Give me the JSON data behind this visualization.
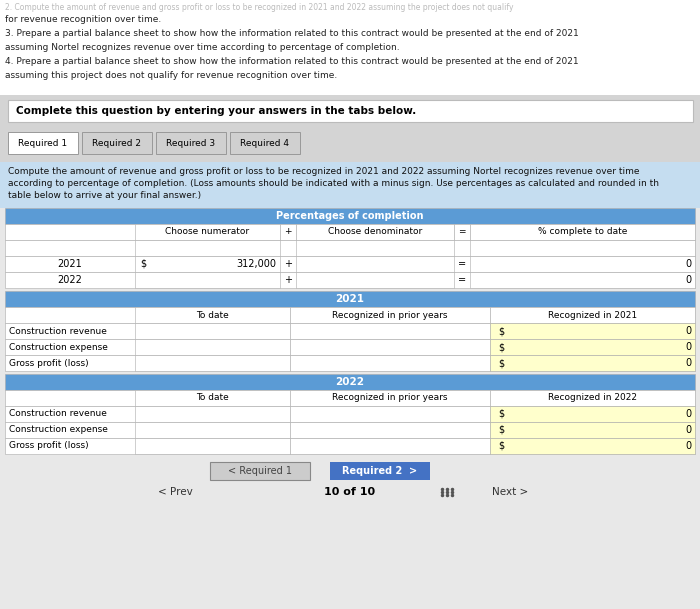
{
  "bg_color": "#e8e8e8",
  "white": "#ffffff",
  "light_blue": "#5b9bd5",
  "medium_blue": "#4472c4",
  "light_gray": "#cccccc",
  "tab_gray": "#d0d0d0",
  "yellow": "#ffffcc",
  "header_bg": "#c5ddf0",
  "section_bg": "#5b9bd5",
  "complete_bg": "#d4d4d4",
  "top_text_lines": [
    "for revenue recognition over time.",
    "3. Prepare a partial balance sheet to show how the information related to this contract would be presented at the end of 2021",
    "assuming Nortel recognizes revenue over time according to percentage of completion.",
    "4. Prepare a partial balance sheet to show how the information related to this contract would be presented at the end of 2021",
    "assuming this project does not qualify for revenue recognition over time."
  ],
  "top_faded_line": "2. Compute the amount of revenue and gross profit or loss to be recognized in 2021 and 2022 assuming the project does not qualify",
  "complete_question_text": "Complete this question by entering your answers in the tabs below.",
  "tabs": [
    "Required 1",
    "Required 2",
    "Required 3",
    "Required 4"
  ],
  "instruction_lines": [
    "Compute the amount of revenue and gross profit or loss to be recognized in 2021 and 2022 assuming Nortel recognizes revenue over time",
    "according to percentage of completion. (Loss amounts should be indicated with a minus sign. Use percentages as calculated and rounded in th",
    "table below to arrive at your final answer.)"
  ],
  "pct_header": "Percentages of completion",
  "col1_header": "Choose numerator",
  "col2_header": "Choose denominator",
  "col3_header": "% complete to date",
  "section2021_header": "2021",
  "section2022_header": "2022",
  "col_to_date": "To date",
  "col_prior": "Recognized in prior years",
  "col_recog2021": "Recognized in 2021",
  "col_recog2022": "Recognized in 2022",
  "rows_labels": [
    "Construction revenue",
    "Construction expense",
    "Gross profit (loss)"
  ],
  "btn_req1": "< Required 1",
  "btn_req2": "Required 2  >",
  "nav_prev": "< Prev",
  "nav_page": "10 of 10",
  "nav_next": "Next >"
}
